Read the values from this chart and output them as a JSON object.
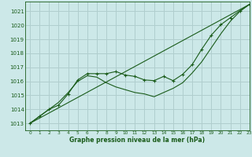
{
  "title": "Graphe pression niveau de la mer (hPa)",
  "background_color": "#cce8e8",
  "grid_color": "#b0cece",
  "line_color": "#1a5c1a",
  "xlim": [
    -0.5,
    23
  ],
  "ylim": [
    1012.5,
    1021.7
  ],
  "yticks": [
    1013,
    1014,
    1015,
    1016,
    1017,
    1018,
    1019,
    1020,
    1021
  ],
  "xticks": [
    0,
    1,
    2,
    3,
    4,
    5,
    6,
    7,
    8,
    9,
    10,
    11,
    12,
    13,
    14,
    15,
    16,
    17,
    18,
    19,
    20,
    21,
    22,
    23
  ],
  "main_x": [
    0,
    1,
    2,
    3,
    4,
    5,
    6,
    7,
    8,
    9,
    10,
    11,
    12,
    13,
    14,
    15,
    16,
    17,
    18,
    19,
    20,
    21,
    22,
    23
  ],
  "main_y": [
    1013.0,
    1013.5,
    1014.0,
    1014.3,
    1015.1,
    1016.1,
    1016.55,
    1016.55,
    1016.55,
    1016.7,
    1016.45,
    1016.35,
    1016.1,
    1016.05,
    1016.35,
    1016.05,
    1016.5,
    1017.2,
    1018.3,
    1019.3,
    1020.05,
    1020.55,
    1021.05,
    1021.5
  ],
  "line2_x": [
    0,
    1,
    2,
    3,
    4,
    5,
    6,
    7,
    8,
    9,
    10,
    11,
    12,
    13,
    14,
    15,
    16,
    17,
    18,
    19,
    20,
    21,
    22,
    23
  ],
  "line2_y": [
    1013.0,
    1013.5,
    1014.0,
    1014.5,
    1015.2,
    1016.0,
    1016.4,
    1016.3,
    1015.9,
    1015.6,
    1015.4,
    1015.2,
    1015.1,
    1014.9,
    1015.2,
    1015.5,
    1015.9,
    1016.6,
    1017.4,
    1018.4,
    1019.4,
    1020.3,
    1021.0,
    1021.5
  ],
  "line3_x": [
    0,
    23
  ],
  "line3_y": [
    1013.0,
    1021.5
  ]
}
